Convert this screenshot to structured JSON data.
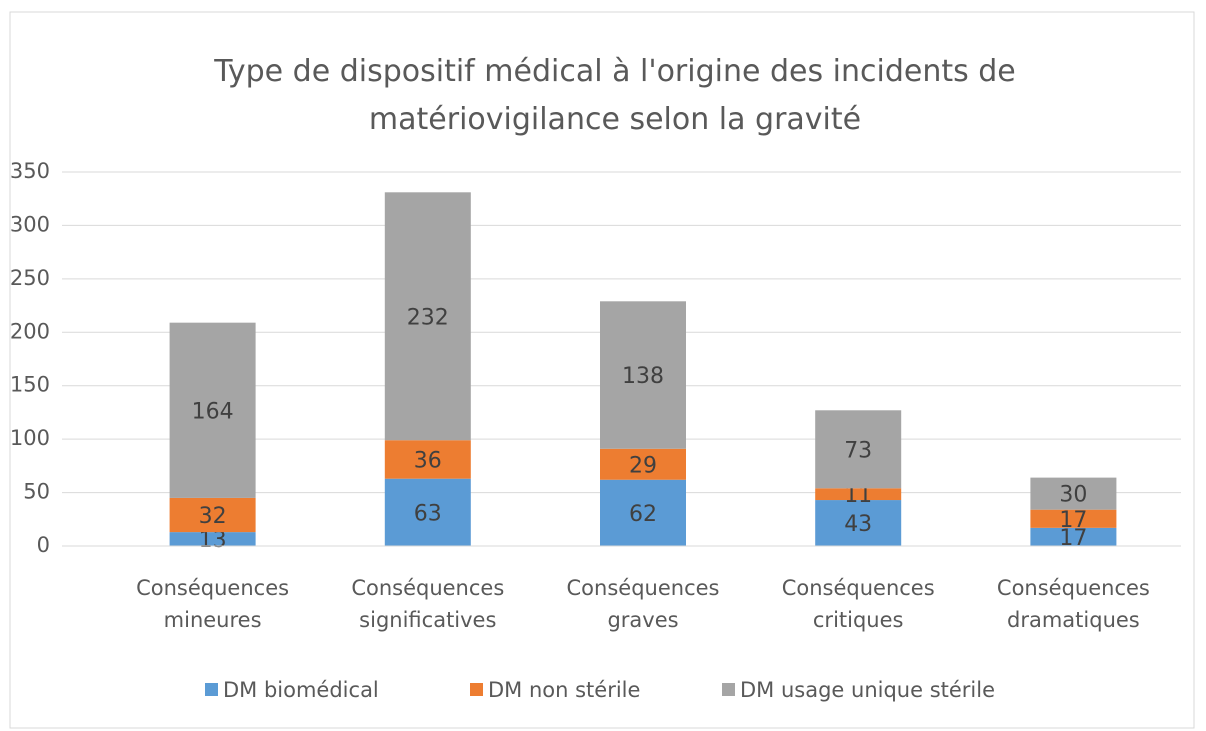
{
  "chart_data": {
    "type": "stacked_bar",
    "title": "Type de dispositif médical à l'origine des incidents de matériovigilance selon la gravité",
    "categories": [
      "Conséquences mineures",
      "Conséquences significatives",
      "Conséquences graves",
      "Conséquences critiques",
      "Conséquences dramatiques"
    ],
    "series": [
      {
        "name": "DM biomédical",
        "color": "#5b9bd5",
        "values": [
          13,
          63,
          62,
          43,
          17
        ]
      },
      {
        "name": "DM non stérile",
        "color": "#ed7d31",
        "values": [
          32,
          36,
          29,
          11,
          17
        ]
      },
      {
        "name": "DM usage unique stérile",
        "color": "#a5a5a5",
        "values": [
          164,
          232,
          138,
          73,
          30
        ]
      }
    ],
    "ylim": [
      0,
      350
    ],
    "yticks": [
      0,
      50,
      100,
      150,
      200,
      250,
      300,
      350
    ],
    "grid": true,
    "legend": "bottom"
  }
}
